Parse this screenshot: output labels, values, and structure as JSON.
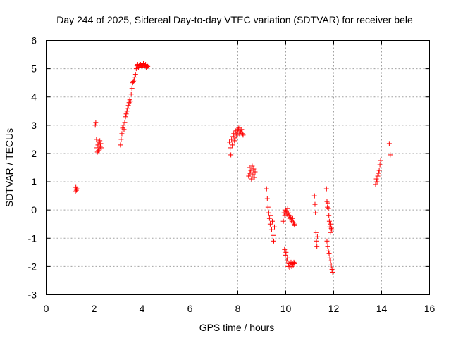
{
  "chart_data": {
    "type": "scatter",
    "title": "Day 244 of 2025, Sidereal Day-to-day VTEC variation (SDTVAR) for receiver bele",
    "xlabel": "GPS time / hours",
    "ylabel": "SDTVAR / TECUs",
    "xlim": [
      0,
      16
    ],
    "ylim": [
      -3,
      6
    ],
    "xticks": [
      "0",
      "2",
      "4",
      "6",
      "8",
      "10",
      "12",
      "14",
      "16"
    ],
    "yticks": [
      "-3",
      "-2",
      "-1",
      "0",
      "1",
      "2",
      "3",
      "4",
      "5",
      "6"
    ],
    "grid": true,
    "marker": "plus",
    "color": "#ff0000",
    "series": [
      {
        "x": [
          1.22,
          1.24,
          1.26,
          1.28,
          2.05,
          2.07,
          2.1,
          2.12,
          2.14,
          2.16,
          2.18,
          2.2,
          2.22,
          2.24,
          2.26,
          2.28,
          2.3,
          3.1,
          3.13,
          3.16,
          3.19,
          3.22,
          3.25,
          3.28,
          3.31,
          3.34,
          3.37,
          3.4,
          3.43,
          3.46,
          3.49,
          3.52,
          3.55,
          3.58,
          3.61,
          3.64,
          3.67,
          3.7,
          3.73,
          3.76,
          3.79,
          3.82,
          3.85,
          3.88,
          3.91,
          3.94,
          3.97,
          4.0,
          4.03,
          4.06,
          4.09,
          4.12,
          4.15,
          4.18,
          4.21,
          4.24,
          7.65,
          7.68,
          7.71,
          7.74,
          7.77,
          7.8,
          7.83,
          7.86,
          7.89,
          7.92,
          7.95,
          7.98,
          8.01,
          8.04,
          8.07,
          8.1,
          8.13,
          8.16,
          8.19,
          8.22,
          8.45,
          8.48,
          8.51,
          8.54,
          8.57,
          8.6,
          8.63,
          8.66,
          8.69,
          8.72,
          9.2,
          9.23,
          9.26,
          9.29,
          9.32,
          9.35,
          9.38,
          9.41,
          9.44,
          9.47,
          9.5,
          9.53,
          9.9,
          9.93,
          9.96,
          9.99,
          10.02,
          10.05,
          10.08,
          10.11,
          10.14,
          10.17,
          10.2,
          10.23,
          10.26,
          10.29,
          10.32,
          10.35,
          10.38,
          9.95,
          9.98,
          10.01,
          10.04,
          10.07,
          10.1,
          10.13,
          10.16,
          10.19,
          10.22,
          10.25,
          10.28,
          10.31,
          10.34,
          10.37,
          11.2,
          11.22,
          11.24,
          11.26,
          11.28,
          11.3,
          11.32,
          11.7,
          11.72,
          11.74,
          11.76,
          11.78,
          11.8,
          11.82,
          11.84,
          11.86,
          11.88,
          11.9,
          11.92,
          11.72,
          11.75,
          11.78,
          11.81,
          11.84,
          11.87,
          11.9,
          11.93,
          11.96,
          13.75,
          13.78,
          13.81,
          13.84,
          13.87,
          13.9,
          13.93,
          13.96,
          14.32,
          14.36
        ],
        "y": [
          0.65,
          0.8,
          0.7,
          0.75,
          3.0,
          3.1,
          2.5,
          2.2,
          2.05,
          2.3,
          2.1,
          2.4,
          2.15,
          2.45,
          2.25,
          2.35,
          2.2,
          2.3,
          2.5,
          2.7,
          2.9,
          3.0,
          2.85,
          3.1,
          3.3,
          3.4,
          3.5,
          3.6,
          3.7,
          3.8,
          3.9,
          3.85,
          4.1,
          4.3,
          4.5,
          4.55,
          4.6,
          4.7,
          4.8,
          5.0,
          5.1,
          5.15,
          5.05,
          5.1,
          5.2,
          5.15,
          5.1,
          5.05,
          5.12,
          5.18,
          5.08,
          5.1,
          5.15,
          5.05,
          5.1,
          5.08,
          2.4,
          2.2,
          1.95,
          2.5,
          2.3,
          2.6,
          2.7,
          2.45,
          2.55,
          2.8,
          2.65,
          2.75,
          2.85,
          2.9,
          2.7,
          2.8,
          2.75,
          2.85,
          2.7,
          2.65,
          1.2,
          1.5,
          1.3,
          1.4,
          1.1,
          1.55,
          1.25,
          1.45,
          1.15,
          1.35,
          0.75,
          0.4,
          0.1,
          -0.1,
          -0.3,
          -0.5,
          -0.2,
          -0.7,
          -0.4,
          -0.9,
          -1.1,
          -0.6,
          -0.4,
          -0.1,
          -0.2,
          0.0,
          -0.05,
          -0.15,
          0.05,
          -0.1,
          -0.2,
          -0.3,
          -0.25,
          -0.35,
          -0.4,
          -0.3,
          -0.45,
          -0.5,
          -0.55,
          -1.4,
          -1.6,
          -1.5,
          -1.8,
          -1.7,
          -2.0,
          -1.9,
          -2.05,
          -1.95,
          -1.85,
          -2.0,
          -1.9,
          -1.95,
          -1.85,
          -1.9,
          0.5,
          0.2,
          -0.1,
          -0.8,
          -1.1,
          -1.3,
          -0.95,
          0.75,
          0.3,
          0.1,
          0.25,
          0.05,
          -0.2,
          -0.4,
          -0.6,
          -0.8,
          -0.5,
          -0.65,
          -0.7,
          -1.1,
          -1.3,
          -1.45,
          -1.55,
          -1.7,
          -1.8,
          -1.95,
          -2.1,
          -2.2,
          0.9,
          1.1,
          1.0,
          1.2,
          1.3,
          1.4,
          1.6,
          1.75,
          2.35,
          1.95
        ]
      }
    ]
  }
}
